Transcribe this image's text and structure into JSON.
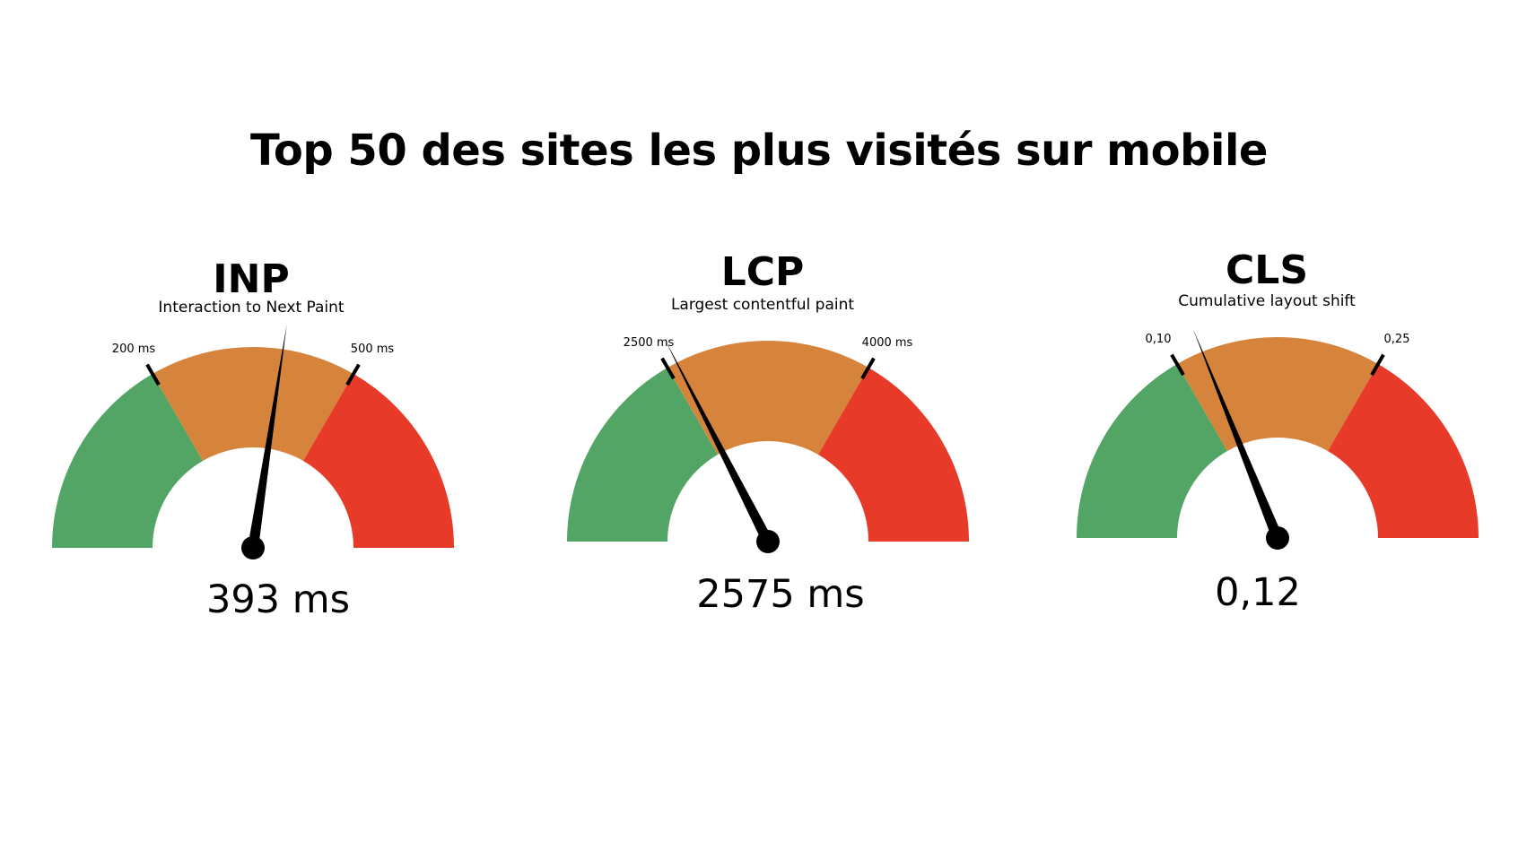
{
  "title": "Top 50 des sites les plus visités sur mobile",
  "colors": {
    "good": "#53a565",
    "needs_improvement": "#d6843b",
    "poor": "#e73a29",
    "needle": "#000000"
  },
  "chart_data": [
    {
      "type": "gauge",
      "title": "INP",
      "subtitle": "Interaction to Next Paint",
      "value": 393,
      "value_label": "393 ms",
      "thresholds": [
        200,
        500
      ],
      "threshold_labels": [
        "200 ms",
        "500 ms"
      ]
    },
    {
      "type": "gauge",
      "title": "LCP",
      "subtitle": "Largest contentful paint",
      "value": 2575,
      "value_label": "2575 ms",
      "thresholds": [
        2500,
        4000
      ],
      "threshold_labels": [
        "2500 ms",
        "4000 ms"
      ]
    },
    {
      "type": "gauge",
      "title": "CLS",
      "subtitle": "Cumulative layout shift",
      "value": 0.12,
      "value_label": "0,12",
      "thresholds": [
        0.1,
        0.25
      ],
      "threshold_labels": [
        "0,10",
        "0,25"
      ]
    }
  ]
}
